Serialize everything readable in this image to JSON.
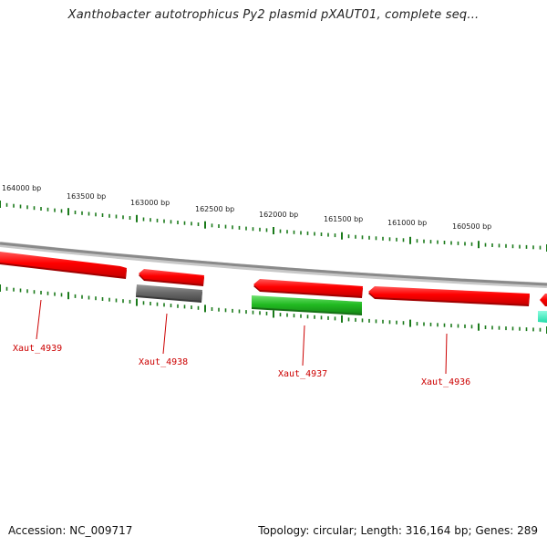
{
  "title": "Xanthobacter autotrophicus Py2 plasmid pXAUT01, complete seq...",
  "footer": {
    "accession": "Accession: NC_009717",
    "summary": "Topology: circular; Length: 316,164 bp; Genes: 289"
  },
  "colors": {
    "backbone": "#8a8a8a",
    "tick": "#1a7a1a",
    "gene_forward": "#ff0000",
    "gene_label": "#cc0000",
    "gene_pseudo": "#606060",
    "gene_rna": "#22bb22",
    "gene_other": "#22ddaa"
  },
  "scale_labels": [
    "164000 bp",
    "163500 bp",
    "163000 bp",
    "162500 bp",
    "162000 bp",
    "161500 bp",
    "161000 bp",
    "160500 bp"
  ],
  "gene_labels": [
    "Xaut_4939",
    "Xaut_4938",
    "Xaut_4937",
    "Xaut_4936"
  ]
}
